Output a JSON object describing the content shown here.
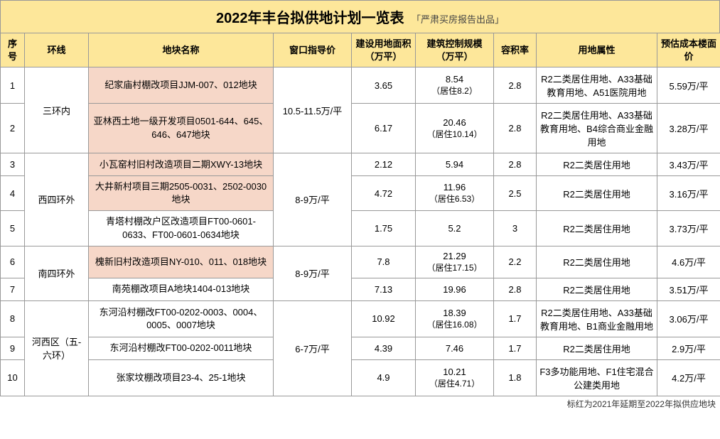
{
  "title": "2022年丰台拟供地计划一览表",
  "subtitle": "「严肃买房报告出品」",
  "footnote": "标红为2021年延期至2022年拟供应地块",
  "headers": {
    "idx": "序号",
    "ring": "环线",
    "name": "地块名称",
    "guide": "窗口指导价",
    "land": "建设用地面积（万平）",
    "ctrl": "建筑控制规模（万平）",
    "far": "容积率",
    "attr": "用地属性",
    "cost": "预估成本楼面价"
  },
  "groups": [
    {
      "ring": "三环内",
      "guide": "10.5-11.5万/平",
      "rows": [
        {
          "idx": "1",
          "name": "纪家庙村棚改项目JJM-007、012地块",
          "hl": true,
          "land": "3.65",
          "ctrl": "8.54",
          "ctrl_sub": "（居住8.2）",
          "far": "2.8",
          "attr": "R2二类居住用地、A33基础教育用地、A51医院用地",
          "cost": "5.59万/平"
        },
        {
          "idx": "2",
          "name": "亚林西土地一级开发项目0501-644、645、646、647地块",
          "hl": true,
          "land": "6.17",
          "ctrl": "20.46",
          "ctrl_sub": "（居住10.14）",
          "far": "2.8",
          "attr": "R2二类居住用地、A33基础教育用地、B4综合商业金融用地",
          "cost": "3.28万/平"
        }
      ]
    },
    {
      "ring": "西四环外",
      "guide": "8-9万/平",
      "rows": [
        {
          "idx": "3",
          "name": "小瓦窑村旧村改造项目二期XWY-13地块",
          "hl": true,
          "land": "2.12",
          "ctrl": "5.94",
          "ctrl_sub": "",
          "far": "2.8",
          "attr": "R2二类居住用地",
          "cost": "3.43万/平"
        },
        {
          "idx": "4",
          "name": "大井新村项目三期2505-0031、2502-0030地块",
          "hl": true,
          "land": "4.72",
          "ctrl": "11.96",
          "ctrl_sub": "（居住6.53）",
          "far": "2.5",
          "attr": "R2二类居住用地",
          "cost": "3.16万/平"
        },
        {
          "idx": "5",
          "name": "青塔村棚改户区改造项目FT00-0601-0633、FT00-0601-0634地块",
          "hl": false,
          "land": "1.75",
          "ctrl": "5.2",
          "ctrl_sub": "",
          "far": "3",
          "attr": "R2二类居住用地",
          "cost": "3.73万/平"
        }
      ]
    },
    {
      "ring": "南四环外",
      "guide": "8-9万/平",
      "rows": [
        {
          "idx": "6",
          "name": "槐新旧村改造项目NY-010、011、018地块",
          "hl": true,
          "land": "7.8",
          "ctrl": "21.29",
          "ctrl_sub": "（居住17.15）",
          "far": "2.2",
          "attr": "R2二类居住用地",
          "cost": "4.6万/平"
        },
        {
          "idx": "7",
          "name": "南苑棚改项目A地块1404-013地块",
          "hl": false,
          "land": "7.13",
          "ctrl": "19.96",
          "ctrl_sub": "",
          "far": "2.8",
          "attr": "R2二类居住用地",
          "cost": "3.51万/平"
        }
      ]
    },
    {
      "ring": "河西区（五-六环）",
      "guide": "6-7万/平",
      "rows": [
        {
          "idx": "8",
          "name": "东河沿村棚改FT00-0202-0003、0004、0005、0007地块",
          "hl": false,
          "land": "10.92",
          "ctrl": "18.39",
          "ctrl_sub": "（居住16.08）",
          "far": "1.7",
          "attr": "R2二类居住用地、A33基础教育用地、B1商业金融用地",
          "cost": "3.06万/平"
        },
        {
          "idx": "9",
          "name": "东河沿村棚改FT00-0202-0011地块",
          "hl": false,
          "land": "4.39",
          "ctrl": "7.46",
          "ctrl_sub": "",
          "far": "1.7",
          "attr": "R2二类居住用地",
          "cost": "2.9万/平"
        },
        {
          "idx": "10",
          "name": "张家坟棚改项目23-4、25-1地块",
          "hl": false,
          "land": "4.9",
          "ctrl": "10.21",
          "ctrl_sub": "（居住4.71）",
          "far": "1.8",
          "attr": "F3多功能用地、F1住宅混合公建类用地",
          "cost": "4.2万/平"
        }
      ]
    }
  ],
  "colors": {
    "header_bg": "#fde79a",
    "highlight_bg": "#f6d7c8",
    "border": "#999999",
    "text": "#000000"
  }
}
